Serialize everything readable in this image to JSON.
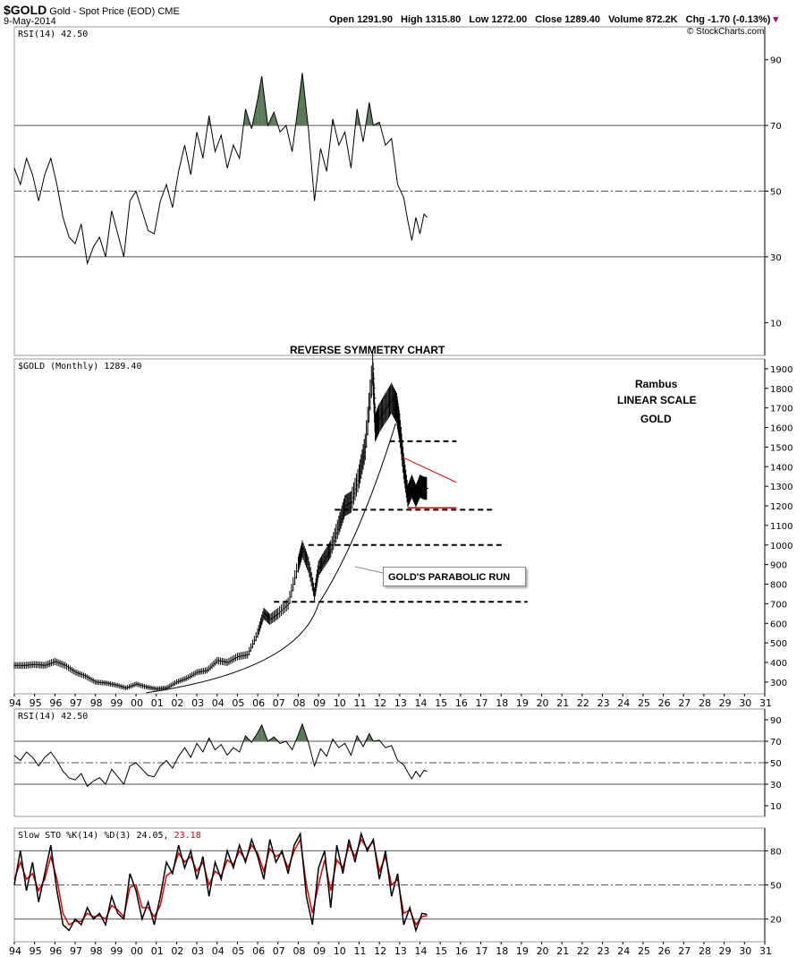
{
  "header": {
    "symbol": "$GOLD",
    "name": "Gold - Spot Price (EOD)",
    "exchange": "CME",
    "date": "9-May-2014",
    "quote_open_label": "Open",
    "quote_open": "1291.90",
    "quote_high_label": "High",
    "quote_high": "1315.80",
    "quote_low_label": "Low",
    "quote_low": "1272.00",
    "quote_close_label": "Close",
    "quote_close": "1289.40",
    "quote_volume_label": "Volume",
    "quote_volume": "872.2K",
    "quote_chg_label": "Chg",
    "quote_chg": "-1.70 (-0.13%)",
    "copyright": "© StockCharts.com"
  },
  "annotations": {
    "title": "REVERSE SYMMETRY CHART",
    "author": "Rambus",
    "scale": "LINEAR SCALE",
    "asset": "GOLD",
    "callout": "GOLD'S PARABOLIC RUN"
  },
  "colors": {
    "grid": "#555555",
    "green_fill": "#5a7a5a",
    "red": "#e00000",
    "line": "#000000"
  },
  "chart_data": [
    {
      "type": "line",
      "label": "RSI(14) 42.50",
      "yticks": [
        10,
        30,
        50,
        70,
        90
      ],
      "ylim": [
        0,
        100
      ],
      "x_range": [
        1994,
        2031
      ],
      "levels": [
        30,
        50,
        70
      ],
      "series": [
        {
          "x": [
            1994.0,
            1994.3,
            1994.6,
            1994.9,
            1995.2,
            1995.5,
            1995.8,
            1996.1,
            1996.4,
            1996.7,
            1997.0,
            1997.3,
            1997.6,
            1997.9,
            1998.2,
            1998.5,
            1998.8,
            1999.1,
            1999.4,
            1999.7,
            2000.0,
            2000.3,
            2000.6,
            2000.9,
            2001.2,
            2001.5,
            2001.8,
            2002.1,
            2002.4,
            2002.7,
            2003.0,
            2003.3,
            2003.6,
            2003.9,
            2004.2,
            2004.5,
            2004.8,
            2005.1,
            2005.4,
            2005.7,
            2006.0,
            2006.2,
            2006.5,
            2006.8,
            2007.1,
            2007.4,
            2007.7,
            2008.0,
            2008.2,
            2008.5,
            2008.8,
            2009.1,
            2009.4,
            2009.7,
            2010.0,
            2010.3,
            2010.6,
            2010.9,
            2011.2,
            2011.5,
            2011.7,
            2012.0,
            2012.3,
            2012.6,
            2012.9,
            2013.2,
            2013.4,
            2013.6,
            2013.8,
            2014.0,
            2014.2,
            2014.35
          ],
          "y": [
            57,
            52,
            60,
            55,
            47,
            55,
            60,
            52,
            42,
            36,
            34,
            40,
            28,
            33,
            36,
            30,
            44,
            37,
            30,
            47,
            50,
            44,
            38,
            37,
            47,
            52,
            45,
            56,
            64,
            55,
            68,
            60,
            73,
            62,
            67,
            57,
            64,
            60,
            75,
            69,
            78,
            85,
            70,
            74,
            68,
            70,
            62,
            76,
            86,
            69,
            47,
            63,
            56,
            72,
            64,
            68,
            57,
            75,
            65,
            77,
            70,
            71,
            64,
            66,
            52,
            48,
            41,
            35,
            42,
            37,
            43,
            42
          ]
        }
      ]
    },
    {
      "type": "line",
      "title": "REVERSE SYMMETRY CHART",
      "label": "$GOLD (Monthly) 1289.40",
      "yticks": [
        300,
        400,
        500,
        600,
        700,
        800,
        900,
        1000,
        1100,
        1200,
        1300,
        1400,
        1500,
        1600,
        1700,
        1800,
        1900
      ],
      "ylim": [
        240,
        1950
      ],
      "x_range": [
        1994,
        2031
      ],
      "xtick_labels": [
        "94",
        "95",
        "96",
        "97",
        "98",
        "99",
        "00",
        "01",
        "02",
        "03",
        "04",
        "05",
        "06",
        "07",
        "08",
        "09",
        "10",
        "11",
        "12",
        "13",
        "14",
        "15",
        "16",
        "17",
        "18",
        "19",
        "20",
        "21",
        "22",
        "23",
        "24",
        "25",
        "26",
        "27",
        "28",
        "29",
        "30",
        "31"
      ],
      "series": [
        {
          "name": "$GOLD",
          "x": [
            1994.0,
            1994.5,
            1995.0,
            1995.5,
            1996.0,
            1996.5,
            1997.0,
            1997.5,
            1998.0,
            1998.5,
            1999.0,
            1999.5,
            2000.0,
            2000.5,
            2001.0,
            2001.5,
            2002.0,
            2002.5,
            2003.0,
            2003.5,
            2004.0,
            2004.5,
            2005.0,
            2005.5,
            2006.0,
            2006.3,
            2006.6,
            2007.0,
            2007.5,
            2008.0,
            2008.2,
            2008.5,
            2008.8,
            2009.0,
            2009.3,
            2009.6,
            2010.0,
            2010.3,
            2010.6,
            2011.0,
            2011.3,
            2011.67,
            2011.8,
            2012.0,
            2012.3,
            2012.6,
            2012.85,
            2013.0,
            2013.2,
            2013.4,
            2013.6,
            2013.8,
            2014.0,
            2014.2,
            2014.35
          ],
          "y": [
            385,
            385,
            390,
            385,
            405,
            385,
            350,
            330,
            300,
            295,
            285,
            270,
            290,
            275,
            265,
            270,
            300,
            320,
            350,
            360,
            410,
            400,
            430,
            440,
            550,
            650,
            620,
            650,
            700,
            900,
            980,
            900,
            750,
            880,
            930,
            980,
            1100,
            1200,
            1220,
            1350,
            1500,
            1900,
            1600,
            1650,
            1700,
            1750,
            1700,
            1600,
            1400,
            1250,
            1300,
            1250,
            1300,
            1290,
            1289
          ]
        }
      ],
      "support_levels": [
        1530,
        1180,
        1000,
        710
      ],
      "triangle": {
        "x": [
          2013.1,
          2015.8
        ],
        "y_top": [
          1450,
          1320
        ],
        "y_bottom": [
          1190,
          1190
        ]
      },
      "parabola": {
        "x": [
          2000.5,
          2009.0,
          2010.5,
          2011.8,
          2012.8
        ],
        "y": [
          245,
          700,
          950,
          1300,
          1620
        ]
      }
    },
    {
      "type": "line",
      "label": "RSI(14) 42.50",
      "yticks": [
        10,
        30,
        50,
        70,
        90
      ],
      "ylim": [
        0,
        100
      ],
      "x_range": [
        1994,
        2031
      ],
      "levels": [
        30,
        50,
        70
      ],
      "series_ref": 0
    },
    {
      "type": "line",
      "label": "Slow STO %K(14) %D(3) 24.05, 23.18",
      "label_main": "Slow STO %K(14) %D(3) 24.05,",
      "label_d": "23.18",
      "yticks": [
        20,
        50,
        80
      ],
      "ylim": [
        0,
        100
      ],
      "x_range": [
        1994,
        2031
      ],
      "xtick_labels": [
        "94",
        "95",
        "96",
        "97",
        "98",
        "99",
        "00",
        "01",
        "02",
        "03",
        "04",
        "05",
        "06",
        "07",
        "08",
        "09",
        "10",
        "11",
        "12",
        "13",
        "14",
        "15",
        "16",
        "17",
        "18",
        "19",
        "20",
        "21",
        "22",
        "23",
        "24",
        "25",
        "26",
        "27",
        "28",
        "29",
        "30",
        "31"
      ],
      "levels": [
        20,
        50,
        80
      ],
      "series": [
        {
          "name": "%K",
          "x": [
            1994.0,
            1994.3,
            1994.6,
            1994.9,
            1995.2,
            1995.5,
            1995.8,
            1996.1,
            1996.4,
            1996.7,
            1997.0,
            1997.3,
            1997.6,
            1997.9,
            1998.2,
            1998.5,
            1998.8,
            1999.1,
            1999.4,
            1999.7,
            2000.0,
            2000.3,
            2000.6,
            2000.9,
            2001.2,
            2001.5,
            2001.8,
            2002.1,
            2002.4,
            2002.7,
            2003.0,
            2003.3,
            2003.6,
            2003.9,
            2004.2,
            2004.5,
            2004.8,
            2005.1,
            2005.4,
            2005.7,
            2006.0,
            2006.3,
            2006.6,
            2006.9,
            2007.2,
            2007.5,
            2007.8,
            2008.1,
            2008.4,
            2008.7,
            2009.0,
            2009.3,
            2009.6,
            2009.9,
            2010.2,
            2010.5,
            2010.8,
            2011.1,
            2011.4,
            2011.7,
            2012.0,
            2012.3,
            2012.6,
            2012.9,
            2013.2,
            2013.5,
            2013.8,
            2014.1,
            2014.35
          ],
          "y": [
            50,
            80,
            45,
            70,
            35,
            60,
            85,
            45,
            15,
            10,
            20,
            15,
            30,
            20,
            25,
            15,
            40,
            25,
            20,
            60,
            45,
            20,
            35,
            15,
            40,
            70,
            60,
            85,
            65,
            80,
            55,
            75,
            40,
            70,
            55,
            80,
            65,
            85,
            70,
            90,
            75,
            55,
            90,
            70,
            80,
            60,
            85,
            95,
            40,
            15,
            65,
            80,
            30,
            85,
            60,
            90,
            70,
            95,
            80,
            90,
            55,
            80,
            40,
            60,
            15,
            30,
            10,
            25,
            24
          ]
        },
        {
          "name": "%D",
          "x": [
            1994.0,
            1994.3,
            1994.6,
            1994.9,
            1995.2,
            1995.5,
            1995.8,
            1996.1,
            1996.4,
            1996.7,
            1997.0,
            1997.3,
            1997.6,
            1997.9,
            1998.2,
            1998.5,
            1998.8,
            1999.1,
            1999.4,
            1999.7,
            2000.0,
            2000.3,
            2000.6,
            2000.9,
            2001.2,
            2001.5,
            2001.8,
            2002.1,
            2002.4,
            2002.7,
            2003.0,
            2003.3,
            2003.6,
            2003.9,
            2004.2,
            2004.5,
            2004.8,
            2005.1,
            2005.4,
            2005.7,
            2006.0,
            2006.3,
            2006.6,
            2006.9,
            2007.2,
            2007.5,
            2007.8,
            2008.1,
            2008.4,
            2008.7,
            2009.0,
            2009.3,
            2009.6,
            2009.9,
            2010.2,
            2010.5,
            2010.8,
            2011.1,
            2011.4,
            2011.7,
            2012.0,
            2012.3,
            2012.6,
            2012.9,
            2013.2,
            2013.5,
            2013.8,
            2014.1,
            2014.35
          ],
          "y": [
            55,
            70,
            55,
            60,
            45,
            55,
            75,
            55,
            25,
            15,
            18,
            18,
            25,
            22,
            23,
            20,
            32,
            28,
            22,
            48,
            50,
            30,
            30,
            22,
            32,
            58,
            62,
            78,
            70,
            75,
            62,
            70,
            50,
            62,
            58,
            72,
            68,
            80,
            72,
            85,
            78,
            62,
            82,
            75,
            78,
            65,
            80,
            90,
            50,
            25,
            50,
            72,
            45,
            72,
            65,
            85,
            75,
            90,
            82,
            88,
            62,
            75,
            50,
            55,
            25,
            28,
            15,
            22,
            23
          ]
        }
      ]
    }
  ]
}
